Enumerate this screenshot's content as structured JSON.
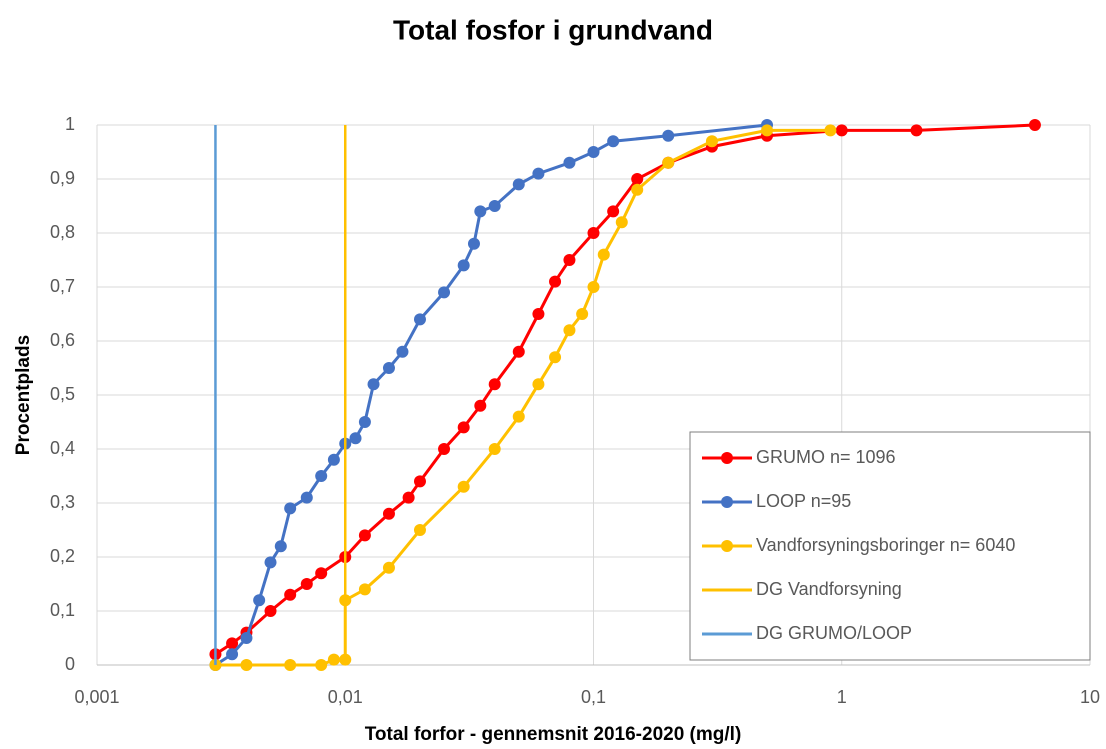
{
  "chart_data": {
    "type": "line",
    "title": "Total fosfor i grundvand",
    "xlabel": "Total forfor - gennemsnit 2016-2020  (mg/l)",
    "ylabel": "Procentplads",
    "log_x": true,
    "grid": true,
    "legend": "lower right",
    "xlim": [
      0.001,
      10
    ],
    "xticks": [
      {
        "value": 0.001,
        "label": "0,001"
      },
      {
        "value": 0.01,
        "label": "0,01"
      },
      {
        "value": 0.1,
        "label": "0,1"
      },
      1,
      10
    ],
    "ylim": [
      0,
      1
    ],
    "yticks": [
      0,
      {
        "value": 0.1,
        "label": "0,1"
      },
      {
        "value": 0.2,
        "label": "0,2"
      },
      {
        "value": 0.3,
        "label": "0,3"
      },
      {
        "value": 0.4,
        "label": "0,4"
      },
      {
        "value": 0.5,
        "label": "0,5"
      },
      {
        "value": 0.6,
        "label": "0,6"
      },
      {
        "value": 0.7,
        "label": "0,7"
      },
      {
        "value": 0.8,
        "label": "0,8"
      },
      {
        "value": 0.9,
        "label": "0,9"
      },
      1
    ],
    "series": [
      {
        "name": "GRUMO n= 1096",
        "color": "#ff0000",
        "markers": true,
        "x": [
          0.003,
          0.0035,
          0.004,
          0.005,
          0.006,
          0.007,
          0.008,
          0.01,
          0.012,
          0.015,
          0.018,
          0.02,
          0.025,
          0.03,
          0.035,
          0.04,
          0.05,
          0.06,
          0.07,
          0.08,
          0.1,
          0.12,
          0.15,
          0.2,
          0.3,
          0.5,
          1,
          2,
          6
        ],
        "values": [
          0.02,
          0.04,
          0.06,
          0.1,
          0.13,
          0.15,
          0.17,
          0.2,
          0.24,
          0.28,
          0.31,
          0.34,
          0.4,
          0.44,
          0.48,
          0.52,
          0.58,
          0.65,
          0.71,
          0.75,
          0.8,
          0.84,
          0.9,
          0.93,
          0.96,
          0.98,
          0.99,
          0.99,
          1
        ]
      },
      {
        "name": "LOOP  n=95",
        "color": "#4472c4",
        "markers": true,
        "x": [
          0.003,
          0.0035,
          0.004,
          0.0045,
          0.005,
          0.0055,
          0.006,
          0.007,
          0.008,
          0.009,
          0.01,
          0.011,
          0.012,
          0.013,
          0.015,
          0.017,
          0.02,
          0.025,
          0.03,
          0.033,
          0.035,
          0.04,
          0.05,
          0.06,
          0.08,
          0.1,
          0.12,
          0.2,
          0.5
        ],
        "values": [
          0,
          0.02,
          0.05,
          0.12,
          0.19,
          0.22,
          0.29,
          0.31,
          0.35,
          0.38,
          0.41,
          0.42,
          0.45,
          0.52,
          0.55,
          0.58,
          0.64,
          0.69,
          0.74,
          0.78,
          0.84,
          0.85,
          0.89,
          0.91,
          0.93,
          0.95,
          0.97,
          0.98,
          1
        ]
      },
      {
        "name": "Vandforsyningsboringer n= 6040",
        "color": "#ffc000",
        "markers": true,
        "x": [
          0.003,
          0.004,
          0.006,
          0.008,
          0.009,
          0.01,
          0.01,
          0.012,
          0.015,
          0.02,
          0.03,
          0.04,
          0.05,
          0.06,
          0.07,
          0.08,
          0.09,
          0.1,
          0.11,
          0.13,
          0.15,
          0.2,
          0.3,
          0.5,
          0.9
        ],
        "values": [
          0,
          0,
          0,
          0,
          0.01,
          0.01,
          0.12,
          0.14,
          0.18,
          0.25,
          0.33,
          0.4,
          0.46,
          0.52,
          0.57,
          0.62,
          0.65,
          0.7,
          0.76,
          0.82,
          0.88,
          0.93,
          0.97,
          0.99,
          0.99
        ]
      },
      {
        "name": "DG Vandforsyning",
        "color": "#ffc000",
        "markers": false,
        "x": [
          0.01,
          0.01
        ],
        "values": [
          0,
          1
        ]
      },
      {
        "name": "DG GRUMO/LOOP",
        "color": "#5b9bd5",
        "markers": false,
        "x": [
          0.003,
          0.003
        ],
        "values": [
          0,
          1
        ]
      }
    ]
  }
}
